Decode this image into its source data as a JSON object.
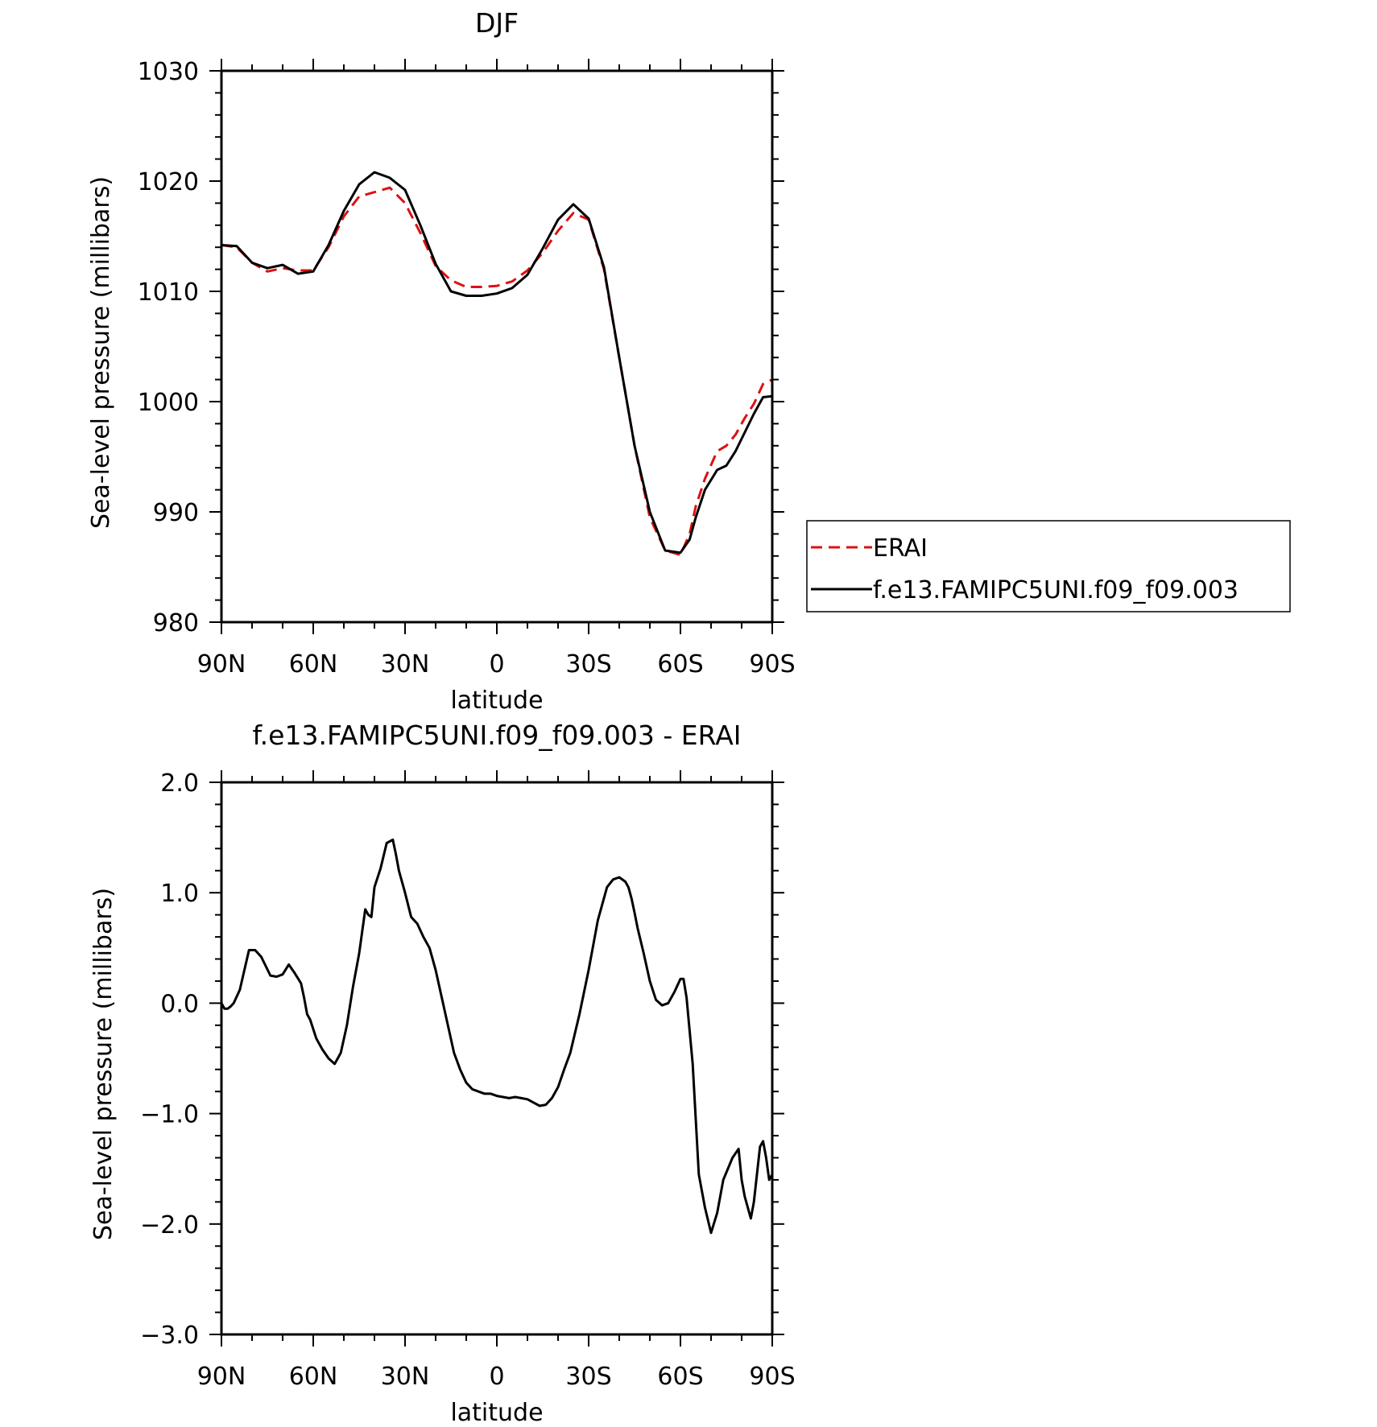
{
  "chart_data": [
    {
      "type": "line",
      "title": "DJF",
      "xlabel": "latitude",
      "ylabel": "Sea-level pressure (millibars)",
      "xlim": [
        90,
        -90
      ],
      "ylim": [
        980,
        1030
      ],
      "x_ticks": [
        90,
        60,
        30,
        0,
        -30,
        -60,
        -90
      ],
      "x_tick_labels": [
        "90N",
        "60N",
        "30N",
        "0",
        "30S",
        "60S",
        "90S"
      ],
      "y_ticks": [
        980,
        990,
        1000,
        1010,
        1020,
        1030
      ],
      "y_tick_labels": [
        "980",
        "990",
        "1000",
        "1010",
        "1020",
        "1030"
      ],
      "legend": "right",
      "series": [
        {
          "name": "ERAI",
          "color": "#dd1111",
          "dash": true,
          "x": [
            90,
            85,
            80,
            75,
            70,
            65,
            60,
            55,
            50,
            45,
            40,
            35,
            30,
            25,
            20,
            15,
            10,
            5,
            0,
            -5,
            -10,
            -15,
            -20,
            -25,
            -30,
            -35,
            -40,
            -45,
            -50,
            -55,
            -60,
            -63,
            -65,
            -68,
            -72,
            -75,
            -78,
            -81,
            -84,
            -87,
            -90
          ],
          "values": [
            1014.2,
            1014.0,
            1012.6,
            1011.8,
            1012.1,
            1011.9,
            1011.9,
            1014.0,
            1016.8,
            1018.6,
            1019.0,
            1019.4,
            1018.0,
            1015.3,
            1012.3,
            1011.0,
            1010.4,
            1010.4,
            1010.5,
            1010.9,
            1011.9,
            1013.5,
            1015.5,
            1017.1,
            1016.5,
            1012.0,
            1004.0,
            996.0,
            989.5,
            986.5,
            986.1,
            988.0,
            990.5,
            993.0,
            995.5,
            996.0,
            997.0,
            998.5,
            999.8,
            1001.6,
            1002.0
          ]
        },
        {
          "name": "f.e13.FAMIPC5UNI.f09_f09.003",
          "color": "#000000",
          "dash": false,
          "x": [
            90,
            85,
            80,
            75,
            70,
            65,
            60,
            55,
            50,
            45,
            40,
            35,
            30,
            25,
            20,
            15,
            10,
            5,
            0,
            -5,
            -10,
            -15,
            -20,
            -25,
            -30,
            -35,
            -40,
            -45,
            -50,
            -55,
            -60,
            -63,
            -65,
            -68,
            -72,
            -75,
            -78,
            -81,
            -84,
            -87,
            -90
          ],
          "values": [
            1014.2,
            1014.1,
            1012.6,
            1012.1,
            1012.4,
            1011.6,
            1011.8,
            1014.2,
            1017.3,
            1019.7,
            1020.8,
            1020.3,
            1019.2,
            1016.0,
            1012.5,
            1010.0,
            1009.6,
            1009.6,
            1009.8,
            1010.3,
            1011.5,
            1013.9,
            1016.5,
            1017.9,
            1016.6,
            1012.2,
            1004.0,
            996.0,
            990.0,
            986.5,
            986.3,
            987.5,
            989.5,
            992.0,
            993.8,
            994.2,
            995.5,
            997.2,
            998.9,
            1000.4,
            1000.5
          ]
        }
      ]
    },
    {
      "type": "line",
      "title": "f.e13.FAMIPC5UNI.f09_f09.003 - ERAI",
      "xlabel": "latitude",
      "ylabel": "Sea-level pressure (millibars)",
      "xlim": [
        90,
        -90
      ],
      "ylim": [
        -3.0,
        2.0
      ],
      "x_ticks": [
        90,
        60,
        30,
        0,
        -30,
        -60,
        -90
      ],
      "x_tick_labels": [
        "90N",
        "60N",
        "30N",
        "0",
        "30S",
        "60S",
        "90S"
      ],
      "y_ticks": [
        -3.0,
        -2.0,
        -1.0,
        0.0,
        1.0,
        2.0
      ],
      "y_tick_labels": [
        "−3.0",
        "−2.0",
        "−1.0",
        "0.0",
        "1.0",
        "2.0"
      ],
      "series": [
        {
          "color": "#000000",
          "dash": false,
          "x": [
            90,
            89,
            88,
            87,
            86,
            84,
            81,
            79,
            77,
            74,
            72,
            70,
            68,
            66,
            64,
            63,
            62,
            61,
            59,
            57,
            55,
            53,
            51,
            49,
            47,
            45,
            43,
            42,
            41,
            40,
            38,
            36,
            34,
            33,
            32,
            30,
            28,
            26,
            24,
            22,
            20,
            18,
            16,
            14,
            12,
            10,
            8,
            6,
            4,
            2,
            0,
            -2,
            -4,
            -6,
            -8,
            -10,
            -12,
            -14,
            -16,
            -18,
            -20,
            -22,
            -24,
            -27,
            -30,
            -33,
            -36,
            -38,
            -40,
            -42,
            -43,
            -44,
            -45,
            -46,
            -48,
            -50,
            -52,
            -54,
            -56,
            -58,
            -60,
            -61,
            -62,
            -64,
            -65,
            -66,
            -68,
            -70,
            -72,
            -74,
            -77,
            -79,
            -80,
            -81,
            -83,
            -84,
            -85,
            -86,
            -87,
            -88,
            -89,
            -90
          ],
          "values": [
            0.0,
            -0.05,
            -0.05,
            -0.03,
            0.0,
            0.12,
            0.48,
            0.48,
            0.42,
            0.25,
            0.24,
            0.26,
            0.35,
            0.27,
            0.18,
            0.05,
            -0.1,
            -0.15,
            -0.32,
            -0.42,
            -0.5,
            -0.55,
            -0.45,
            -0.2,
            0.15,
            0.45,
            0.85,
            0.8,
            0.78,
            1.05,
            1.22,
            1.45,
            1.48,
            1.35,
            1.2,
            1.0,
            0.78,
            0.72,
            0.6,
            0.5,
            0.3,
            0.05,
            -0.2,
            -0.45,
            -0.6,
            -0.72,
            -0.78,
            -0.8,
            -0.82,
            -0.82,
            -0.84,
            -0.85,
            -0.86,
            -0.85,
            -0.86,
            -0.87,
            -0.9,
            -0.93,
            -0.92,
            -0.86,
            -0.76,
            -0.6,
            -0.45,
            -0.1,
            0.3,
            0.75,
            1.05,
            1.12,
            1.14,
            1.1,
            1.05,
            0.95,
            0.82,
            0.68,
            0.45,
            0.2,
            0.03,
            -0.02,
            0.0,
            0.1,
            0.22,
            0.22,
            0.05,
            -0.55,
            -1.05,
            -1.55,
            -1.85,
            -2.08,
            -1.9,
            -1.6,
            -1.4,
            -1.32,
            -1.6,
            -1.75,
            -1.95,
            -1.8,
            -1.55,
            -1.3,
            -1.25,
            -1.4,
            -1.6,
            -1.55
          ]
        }
      ]
    }
  ]
}
